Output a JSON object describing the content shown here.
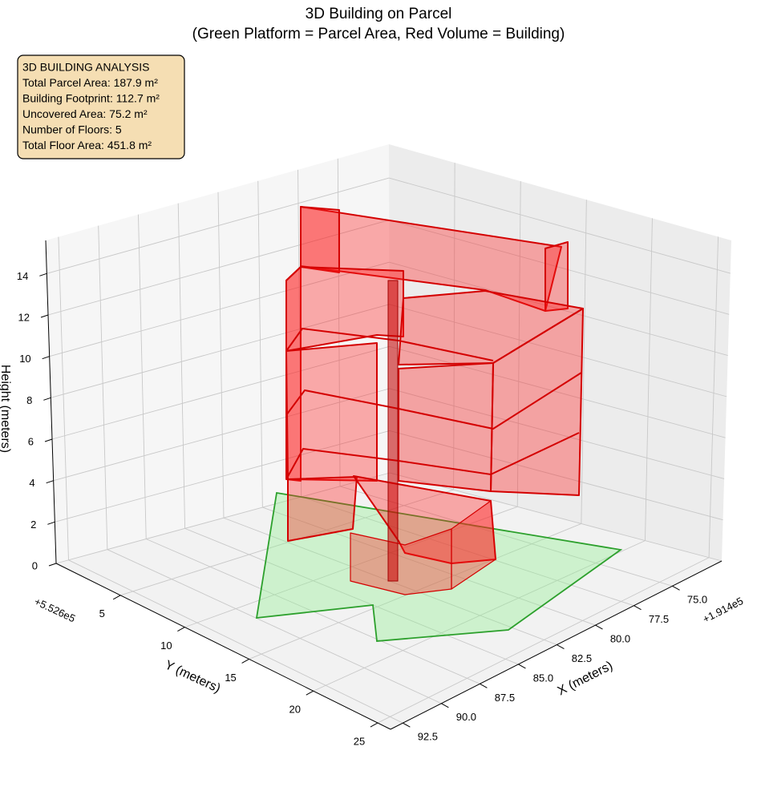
{
  "chart_data": {
    "type": "3d-building",
    "title": "3D Building on Parcel",
    "subtitle": "(Green Platform = Parcel Area, Red Volume = Building)",
    "annotation_lines": [
      "3D BUILDING ANALYSIS",
      "Total Parcel Area: 187.9 m²",
      "Building Footprint: 112.7 m²",
      "Uncovered Area: 75.2 m²",
      "Number of Floors: 5",
      "Total Floor Area: 451.8 m²"
    ],
    "xlabel": "X (meters)",
    "ylabel": "Y (meters)",
    "zlabel": "Height (meters)",
    "x_offset": "+1.914e5",
    "y_offset": "+5.526e5",
    "xlim": [
      71.8,
      93.3
    ],
    "ylim": [
      0,
      26
    ],
    "zlim": [
      0,
      15.6
    ],
    "xticks": [
      {
        "value": 75,
        "label": "75.0"
      },
      77.5,
      {
        "value": 80,
        "label": "80.0"
      },
      82.5,
      {
        "value": 85,
        "label": "85.0"
      },
      87.5,
      {
        "value": 90,
        "label": "90.0"
      },
      92.5
    ],
    "yticks": [
      5,
      10,
      15,
      20,
      25
    ],
    "zticks": [
      0,
      2,
      4,
      6,
      8,
      10,
      12,
      14
    ],
    "grid": true
  }
}
